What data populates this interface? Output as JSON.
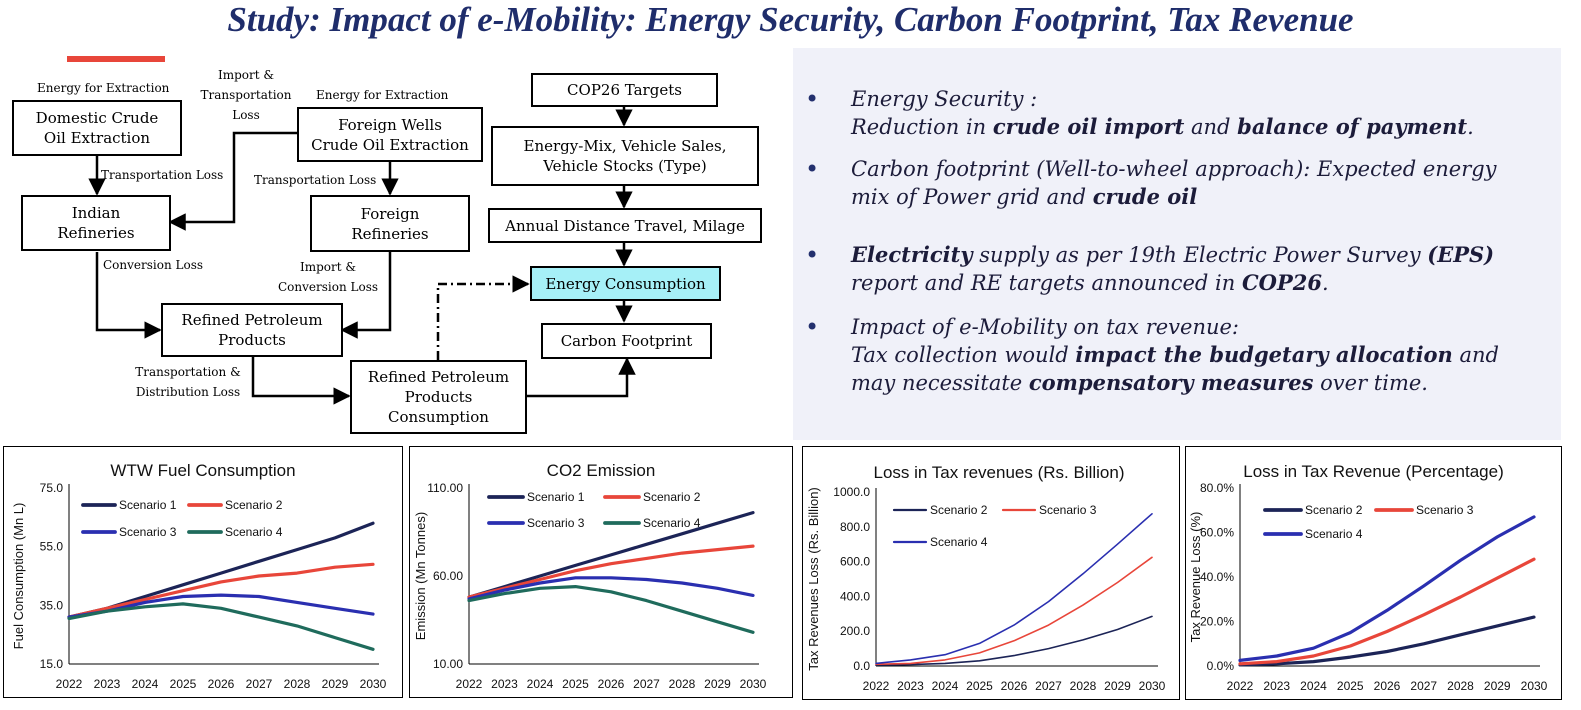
{
  "title": "Study: Impact of e-Mobility: Energy Security, Carbon Footprint, Tax Revenue",
  "flowchart": {
    "boxes": {
      "domestic_crude": "Domestic Crude\nOil Extraction",
      "foreign_wells": "Foreign Wells\nCrude Oil Extraction",
      "indian_refineries": "Indian\nRefineries",
      "foreign_refineries": "Foreign\nRefineries",
      "refined_products": "Refined Petroleum\nProducts",
      "refined_consumption": "Refined Petroleum\nProducts\nConsumption",
      "cop26": "COP26 Targets",
      "energy_mix": "Energy-Mix,  Vehicle Sales,\nVehicle Stocks (Type)",
      "distance": "Annual Distance Travel, Milage",
      "energy_consumption": "Energy Consumption",
      "carbon_footprint": "Carbon Footprint"
    },
    "labels": {
      "energy_extraction_1": "Energy for Extraction",
      "import_transport": "Import &\nTransportation\nLoss",
      "energy_extraction_2": "Energy for Extraction",
      "transport_loss_1": "Transportation Loss",
      "transport_loss_2": "Transportation Loss",
      "conversion_loss": "Conversion Loss",
      "import_conversion": "Import &\nConversion Loss",
      "transport_distribution": "Transportation &\nDistribution Loss"
    }
  },
  "bullets": [
    {
      "lines": [
        [
          [
            "Energy Security :",
            false
          ]
        ],
        [
          [
            "Reduction in ",
            false
          ],
          [
            "crude oil import",
            true
          ],
          [
            " and ",
            false
          ],
          [
            "balance of payment",
            true
          ],
          [
            ".",
            false
          ]
        ]
      ]
    },
    {
      "lines": [
        [
          [
            "Carbon footprint (Well-to-wheel approach): Expected energy",
            false
          ]
        ],
        [
          [
            "mix of Power grid and ",
            false
          ],
          [
            "crude oil",
            true
          ]
        ]
      ]
    },
    {
      "lines": [
        [
          [
            "Electricity",
            true
          ],
          [
            " supply as per 19th Electric Power Survey ",
            false
          ],
          [
            "(EPS)",
            true
          ]
        ],
        [
          [
            "report and RE targets announced in ",
            false
          ],
          [
            "COP26",
            true
          ],
          [
            ".",
            false
          ]
        ]
      ]
    },
    {
      "lines": [
        [
          [
            "Impact of e-Mobility on tax revenue:",
            false
          ]
        ],
        [
          [
            "Tax collection would ",
            false
          ],
          [
            "impact the budgetary allocation",
            true
          ],
          [
            " and",
            false
          ]
        ],
        [
          [
            "may necessitate ",
            false
          ],
          [
            "compensatory measures",
            true
          ],
          [
            " over time.",
            false
          ]
        ]
      ]
    }
  ],
  "colors": {
    "title": "#1f2d6b",
    "scenario_1": "#1c2457",
    "scenario_2": "#e8463a",
    "scenario_3": "#2a2fb0",
    "scenario_4": "#1f6b5c",
    "highlight": "#a6f0f7"
  },
  "chart_data": [
    {
      "type": "line",
      "title": "WTW Fuel Consumption",
      "xlabel": "",
      "ylabel": "Fuel Consumption (Mn L)",
      "ylim": [
        15,
        75
      ],
      "yticks": [
        "15.0",
        "35.0",
        "55.0",
        "75.0"
      ],
      "categories": [
        "2022",
        "2023",
        "2024",
        "2025",
        "2026",
        "2027",
        "2028",
        "2029",
        "2030"
      ],
      "legend_columns": 2,
      "series": [
        {
          "name": "Scenario 1",
          "color": "#1c2457",
          "values": [
            31,
            34,
            38,
            42,
            46,
            50,
            54,
            58,
            63
          ]
        },
        {
          "name": "Scenario 2",
          "color": "#e8463a",
          "values": [
            31,
            34,
            37,
            40,
            43,
            45,
            46,
            48,
            49
          ]
        },
        {
          "name": "Scenario 3",
          "color": "#2a2fb0",
          "values": [
            31,
            33,
            36,
            38,
            38.5,
            38,
            36,
            34,
            32
          ]
        },
        {
          "name": "Scenario 4",
          "color": "#1f6b5c",
          "values": [
            30.5,
            33,
            34.5,
            35.5,
            34,
            31,
            28,
            24,
            20
          ]
        }
      ]
    },
    {
      "type": "line",
      "title": "CO2 Emission",
      "xlabel": "",
      "ylabel": "Emission (Mn Tonnes)",
      "ylim": [
        10,
        110
      ],
      "yticks": [
        "10.00",
        "60.00",
        "110.00"
      ],
      "categories": [
        "2022",
        "2023",
        "2024",
        "2025",
        "2026",
        "2027",
        "2028",
        "2029",
        "2030"
      ],
      "legend_columns": 2,
      "series": [
        {
          "name": "Scenario 1",
          "color": "#1c2457",
          "values": [
            48,
            54,
            60,
            66,
            72,
            78,
            84,
            90,
            96
          ]
        },
        {
          "name": "Scenario 2",
          "color": "#e8463a",
          "values": [
            48,
            53,
            58,
            63,
            67,
            70,
            73,
            75,
            77
          ]
        },
        {
          "name": "Scenario 3",
          "color": "#2a2fb0",
          "values": [
            47,
            52,
            56,
            59,
            59,
            58,
            56,
            53,
            49
          ]
        },
        {
          "name": "Scenario 4",
          "color": "#1f6b5c",
          "values": [
            46,
            50,
            53,
            54,
            51,
            46,
            40,
            34,
            28
          ]
        }
      ]
    },
    {
      "type": "line",
      "title": "Loss in Tax revenues (Rs. Billion)",
      "xlabel": "",
      "ylabel": "Tax Revenues Loss (Rs. Billion)",
      "ylim": [
        0,
        1000
      ],
      "yticks": [
        "0.0",
        "200.0",
        "400.0",
        "600.0",
        "800.0",
        "1000.0"
      ],
      "categories": [
        "2022",
        "2023",
        "2024",
        "2025",
        "2026",
        "2027",
        "2028",
        "2029",
        "2030"
      ],
      "legend_columns": 2,
      "series": [
        {
          "name": "Scenario 2",
          "color": "#1c2457",
          "values": [
            5,
            8,
            15,
            30,
            60,
            100,
            150,
            210,
            285
          ]
        },
        {
          "name": "Scenario 3",
          "color": "#e8463a",
          "values": [
            10,
            15,
            35,
            75,
            145,
            235,
            350,
            480,
            625
          ]
        },
        {
          "name": "Scenario 4",
          "color": "#2a2fb0",
          "values": [
            15,
            35,
            65,
            130,
            235,
            370,
            530,
            700,
            875
          ]
        }
      ]
    },
    {
      "type": "line",
      "title": "Loss in Tax Revenue (Percentage)",
      "xlabel": "",
      "ylabel": "Tax Revenue Loss (%)",
      "ylim": [
        0,
        80
      ],
      "yticks": [
        "0.0%",
        "20.0%",
        "40.0%",
        "60.0%",
        "80.0%"
      ],
      "categories": [
        "2022",
        "2023",
        "2024",
        "2025",
        "2026",
        "2027",
        "2028",
        "2029",
        "2030"
      ],
      "legend_columns": 2,
      "series": [
        {
          "name": "Scenario 2",
          "color": "#1c2457",
          "values": [
            0.5,
            1,
            2,
            4,
            6.5,
            10,
            14,
            18,
            22
          ]
        },
        {
          "name": "Scenario 3",
          "color": "#e8463a",
          "values": [
            1,
            2,
            4.5,
            9,
            15.5,
            23,
            31,
            39.5,
            48
          ]
        },
        {
          "name": "Scenario 4",
          "color": "#2a2fb0",
          "values": [
            2.5,
            4.5,
            8,
            15,
            25,
            36,
            47.5,
            58,
            67
          ]
        }
      ]
    }
  ]
}
